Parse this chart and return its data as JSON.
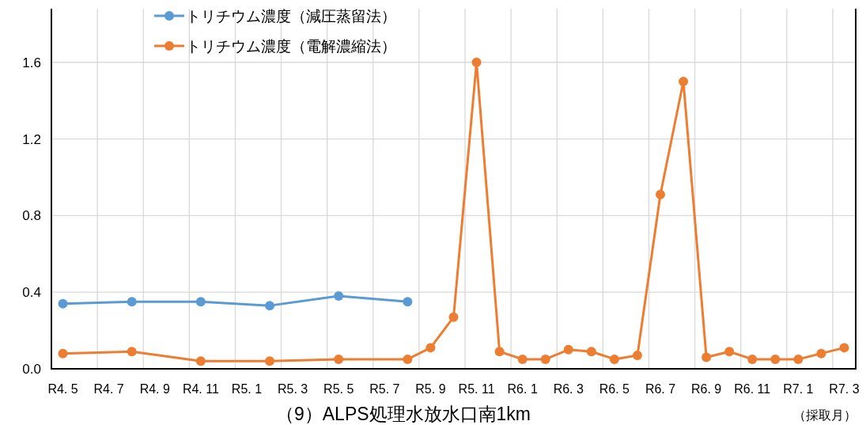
{
  "chart_data": {
    "type": "line",
    "title": "（9）ALPS処理水放水口南1km",
    "xlabel": "（採取月）",
    "categories": [
      "R4. 5",
      null,
      "R4. 7",
      null,
      "R4. 9",
      null,
      "R4. 11",
      null,
      "R5. 1",
      null,
      "R5. 3",
      null,
      "R5. 5",
      null,
      "R5. 7",
      null,
      "R5. 9",
      null,
      "R5. 11",
      null,
      "R6. 1",
      null,
      "R6. 3",
      null,
      "R6. 5",
      null,
      "R6. 7",
      null,
      "R6. 9",
      null,
      "R6. 11",
      null,
      "R7. 1",
      null,
      "R7. 3"
    ],
    "ylim": [
      0,
      1.88
    ],
    "yticks": [
      {
        "value": 0,
        "label": "0.0"
      },
      0.4,
      0.8,
      1.2,
      1.6
    ],
    "grid": true,
    "legend": "top left",
    "marker": "circle",
    "line_style": "solid",
    "series": [
      {
        "name": "トリチウム濃度（減圧蒸留法）",
        "color": "#5b9bd5",
        "values": [
          0.34,
          null,
          null,
          0.35,
          null,
          null,
          0.35,
          null,
          null,
          0.33,
          null,
          null,
          0.38,
          null,
          null,
          0.35,
          null,
          null,
          null,
          null,
          null,
          null,
          null,
          null,
          null,
          null,
          null,
          null,
          null,
          null,
          null,
          null,
          null,
          null,
          null
        ]
      },
      {
        "name": "トリチウム濃度（電解濃縮法）",
        "color": "#ed7d31",
        "values": [
          0.08,
          null,
          null,
          0.09,
          null,
          null,
          0.04,
          null,
          null,
          0.04,
          null,
          null,
          0.05,
          null,
          null,
          0.05,
          0.11,
          0.27,
          1.6,
          0.09,
          0.05,
          0.05,
          0.1,
          0.09,
          0.05,
          0.07,
          0.91,
          1.5,
          0.06,
          0.09,
          0.05,
          0.05,
          0.05,
          0.08,
          0.11
        ]
      }
    ]
  }
}
